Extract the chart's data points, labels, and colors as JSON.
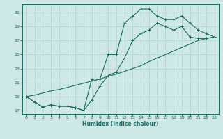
{
  "xlabel": "Humidex (Indice chaleur)",
  "bg_color": "#cde8e5",
  "grid_color": "#b8d8d5",
  "line_color": "#1a6b62",
  "xlim": [
    -0.5,
    23.5
  ],
  "ylim": [
    16.5,
    32.2
  ],
  "xticks": [
    0,
    1,
    2,
    3,
    4,
    5,
    6,
    7,
    8,
    9,
    10,
    11,
    12,
    13,
    14,
    15,
    16,
    17,
    18,
    19,
    20,
    21,
    22,
    23
  ],
  "yticks": [
    17,
    19,
    21,
    23,
    25,
    27,
    29,
    31
  ],
  "line1_x": [
    0,
    1,
    2,
    3,
    4,
    5,
    6,
    7,
    8,
    9,
    10,
    11,
    12,
    13,
    14,
    15,
    16,
    17,
    18,
    19,
    20,
    21,
    22,
    23
  ],
  "line1_y": [
    19,
    18.2,
    17.5,
    17.8,
    17.6,
    17.6,
    17.4,
    17.0,
    18.5,
    20.5,
    22.0,
    22.5,
    24.5,
    27.0,
    28.0,
    28.5,
    29.5,
    29.0,
    28.5,
    29.0,
    27.5,
    27.3,
    27.3,
    27.5
  ],
  "line2_x": [
    0,
    1,
    2,
    3,
    4,
    5,
    6,
    7,
    8,
    9,
    10,
    11,
    12,
    13,
    14,
    15,
    16,
    17,
    18,
    19,
    20,
    21,
    22,
    23
  ],
  "line2_y": [
    19,
    18.2,
    17.5,
    17.8,
    17.6,
    17.6,
    17.4,
    17.0,
    21.5,
    21.5,
    25.0,
    25.0,
    29.5,
    30.5,
    31.5,
    31.5,
    30.5,
    30.0,
    30.0,
    30.5,
    29.5,
    28.5,
    28.0,
    27.5
  ],
  "line3_x": [
    0,
    1,
    2,
    3,
    4,
    5,
    6,
    7,
    8,
    9,
    10,
    11,
    12,
    13,
    14,
    15,
    16,
    17,
    18,
    19,
    20,
    21,
    22,
    23
  ],
  "line3_y": [
    19,
    19.2,
    19.5,
    19.8,
    20.0,
    20.3,
    20.6,
    20.9,
    21.2,
    21.5,
    21.9,
    22.2,
    22.6,
    23.0,
    23.4,
    24.0,
    24.5,
    25.0,
    25.5,
    26.0,
    26.5,
    27.0,
    27.3,
    27.5
  ]
}
